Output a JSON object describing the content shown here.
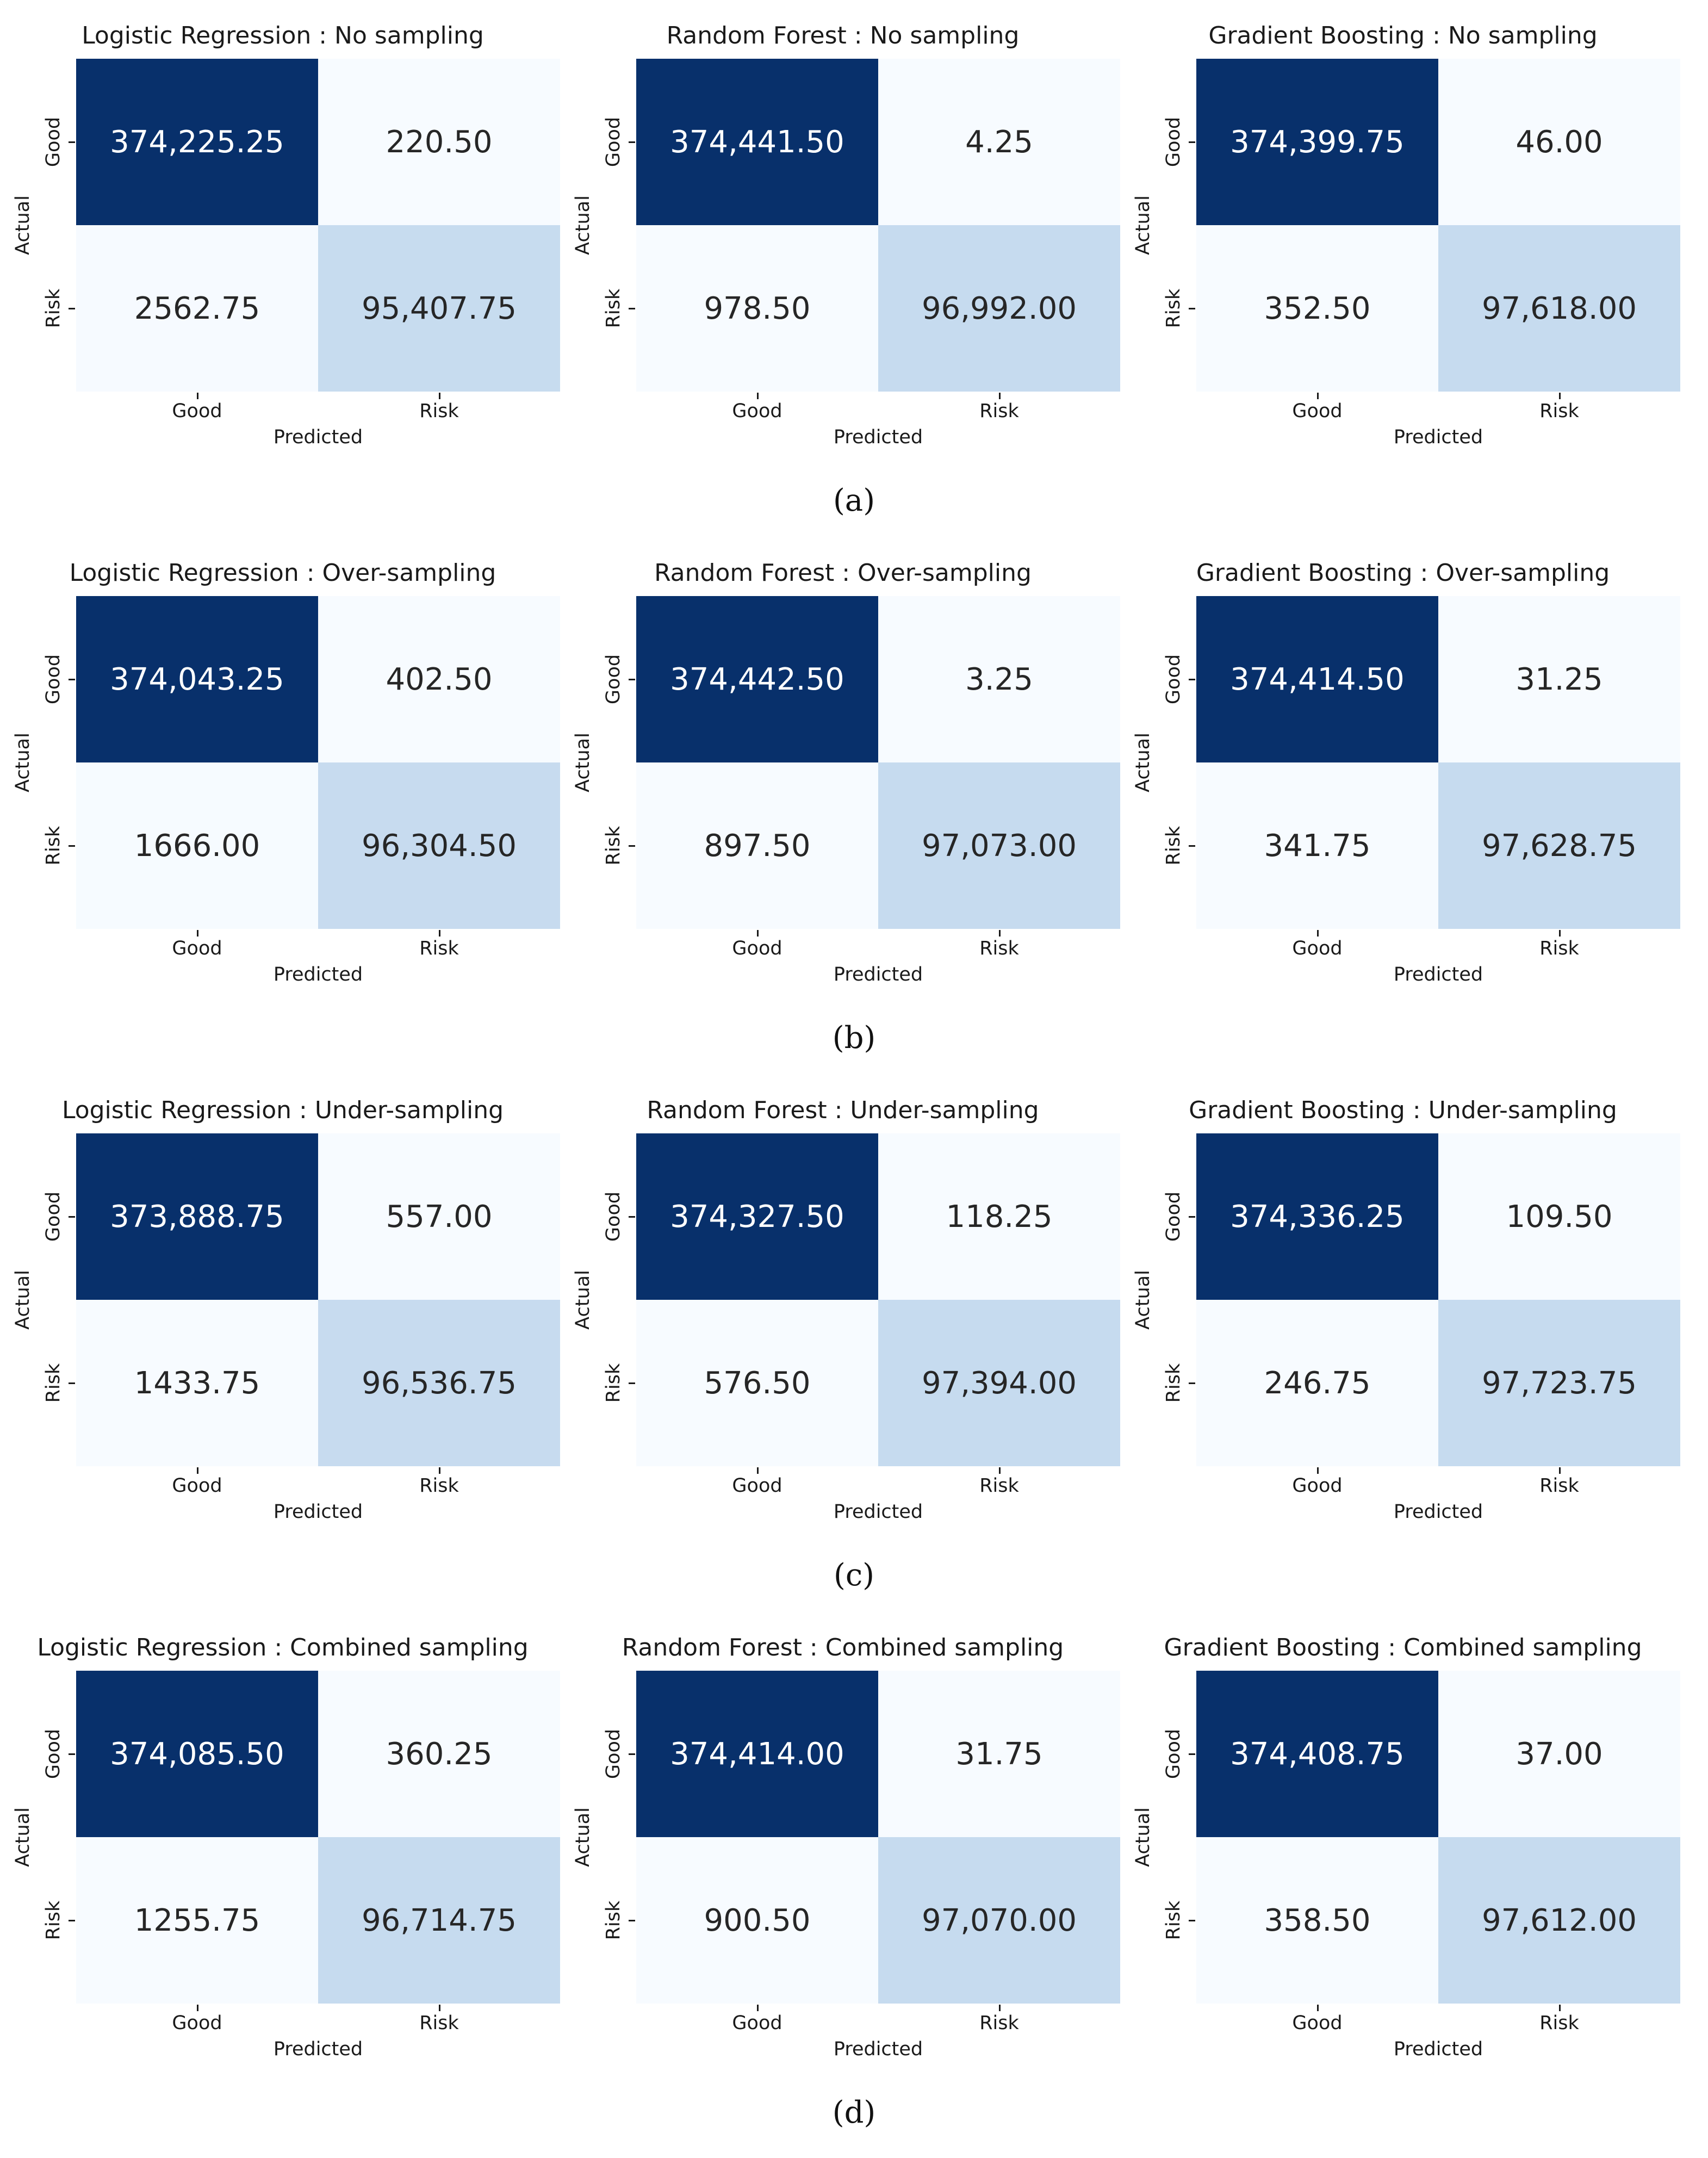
{
  "colors": {
    "dark": "#08306b",
    "mid": "#c6dbef",
    "light": "#f7fbff",
    "text_on_dark": "#ffffff",
    "text_on_light": "#262626"
  },
  "chart_data": [
    {
      "type": "heatmap",
      "caption": "(a)",
      "panels": [
        {
          "title": "Logistic Regression : No sampling",
          "xlabel": "Predicted",
          "ylabel": "Actual",
          "x_categories": [
            "Good",
            "Risk"
          ],
          "y_categories": [
            "Good",
            "Risk"
          ],
          "values": [
            [
              374225.25,
              220.5
            ],
            [
              2562.75,
              95407.75
            ]
          ],
          "labels": [
            [
              "374,225.25",
              "220.50"
            ],
            [
              "2562.75",
              "95,407.75"
            ]
          ]
        },
        {
          "title": "Random Forest : No sampling",
          "xlabel": "Predicted",
          "ylabel": "Actual",
          "x_categories": [
            "Good",
            "Risk"
          ],
          "y_categories": [
            "Good",
            "Risk"
          ],
          "values": [
            [
              374441.5,
              4.25
            ],
            [
              978.5,
              96992.0
            ]
          ],
          "labels": [
            [
              "374,441.50",
              "4.25"
            ],
            [
              "978.50",
              "96,992.00"
            ]
          ]
        },
        {
          "title": "Gradient Boosting : No sampling",
          "xlabel": "Predicted",
          "ylabel": "Actual",
          "x_categories": [
            "Good",
            "Risk"
          ],
          "y_categories": [
            "Good",
            "Risk"
          ],
          "values": [
            [
              374399.75,
              46.0
            ],
            [
              352.5,
              97618.0
            ]
          ],
          "labels": [
            [
              "374,399.75",
              "46.00"
            ],
            [
              "352.50",
              "97,618.00"
            ]
          ]
        }
      ]
    },
    {
      "type": "heatmap",
      "caption": "(b)",
      "panels": [
        {
          "title": "Logistic Regression : Over-sampling",
          "xlabel": "Predicted",
          "ylabel": "Actual",
          "x_categories": [
            "Good",
            "Risk"
          ],
          "y_categories": [
            "Good",
            "Risk"
          ],
          "values": [
            [
              374043.25,
              402.5
            ],
            [
              1666.0,
              96304.5
            ]
          ],
          "labels": [
            [
              "374,043.25",
              "402.50"
            ],
            [
              "1666.00",
              "96,304.50"
            ]
          ]
        },
        {
          "title": "Random Forest : Over-sampling",
          "xlabel": "Predicted",
          "ylabel": "Actual",
          "x_categories": [
            "Good",
            "Risk"
          ],
          "y_categories": [
            "Good",
            "Risk"
          ],
          "values": [
            [
              374442.5,
              3.25
            ],
            [
              897.5,
              97073.0
            ]
          ],
          "labels": [
            [
              "374,442.50",
              "3.25"
            ],
            [
              "897.50",
              "97,073.00"
            ]
          ]
        },
        {
          "title": "Gradient Boosting : Over-sampling",
          "xlabel": "Predicted",
          "ylabel": "Actual",
          "x_categories": [
            "Good",
            "Risk"
          ],
          "y_categories": [
            "Good",
            "Risk"
          ],
          "values": [
            [
              374414.5,
              31.25
            ],
            [
              341.75,
              97628.75
            ]
          ],
          "labels": [
            [
              "374,414.50",
              "31.25"
            ],
            [
              "341.75",
              "97,628.75"
            ]
          ]
        }
      ]
    },
    {
      "type": "heatmap",
      "caption": "(c)",
      "panels": [
        {
          "title": "Logistic Regression : Under-sampling",
          "xlabel": "Predicted",
          "ylabel": "Actual",
          "x_categories": [
            "Good",
            "Risk"
          ],
          "y_categories": [
            "Good",
            "Risk"
          ],
          "values": [
            [
              373888.75,
              557.0
            ],
            [
              1433.75,
              96536.75
            ]
          ],
          "labels": [
            [
              "373,888.75",
              "557.00"
            ],
            [
              "1433.75",
              "96,536.75"
            ]
          ]
        },
        {
          "title": "Random Forest : Under-sampling",
          "xlabel": "Predicted",
          "ylabel": "Actual",
          "x_categories": [
            "Good",
            "Risk"
          ],
          "y_categories": [
            "Good",
            "Risk"
          ],
          "values": [
            [
              374327.5,
              118.25
            ],
            [
              576.5,
              97394.0
            ]
          ],
          "labels": [
            [
              "374,327.50",
              "118.25"
            ],
            [
              "576.50",
              "97,394.00"
            ]
          ]
        },
        {
          "title": "Gradient Boosting : Under-sampling",
          "xlabel": "Predicted",
          "ylabel": "Actual",
          "x_categories": [
            "Good",
            "Risk"
          ],
          "y_categories": [
            "Good",
            "Risk"
          ],
          "values": [
            [
              374336.25,
              109.5
            ],
            [
              246.75,
              97723.75
            ]
          ],
          "labels": [
            [
              "374,336.25",
              "109.50"
            ],
            [
              "246.75",
              "97,723.75"
            ]
          ]
        }
      ]
    },
    {
      "type": "heatmap",
      "caption": "(d)",
      "panels": [
        {
          "title": "Logistic Regression : Combined sampling",
          "xlabel": "Predicted",
          "ylabel": "Actual",
          "x_categories": [
            "Good",
            "Risk"
          ],
          "y_categories": [
            "Good",
            "Risk"
          ],
          "values": [
            [
              374085.5,
              360.25
            ],
            [
              1255.75,
              96714.75
            ]
          ],
          "labels": [
            [
              "374,085.50",
              "360.25"
            ],
            [
              "1255.75",
              "96,714.75"
            ]
          ]
        },
        {
          "title": "Random Forest : Combined sampling",
          "xlabel": "Predicted",
          "ylabel": "Actual",
          "x_categories": [
            "Good",
            "Risk"
          ],
          "y_categories": [
            "Good",
            "Risk"
          ],
          "values": [
            [
              374414.0,
              31.75
            ],
            [
              900.5,
              97070.0
            ]
          ],
          "labels": [
            [
              "374,414.00",
              "31.75"
            ],
            [
              "900.50",
              "97,070.00"
            ]
          ]
        },
        {
          "title": "Gradient Boosting : Combined sampling",
          "xlabel": "Predicted",
          "ylabel": "Actual",
          "x_categories": [
            "Good",
            "Risk"
          ],
          "y_categories": [
            "Good",
            "Risk"
          ],
          "values": [
            [
              374408.75,
              37.0
            ],
            [
              358.5,
              97612.0
            ]
          ],
          "labels": [
            [
              "374,408.75",
              "37.00"
            ],
            [
              "358.50",
              "97,612.00"
            ]
          ]
        }
      ]
    }
  ]
}
